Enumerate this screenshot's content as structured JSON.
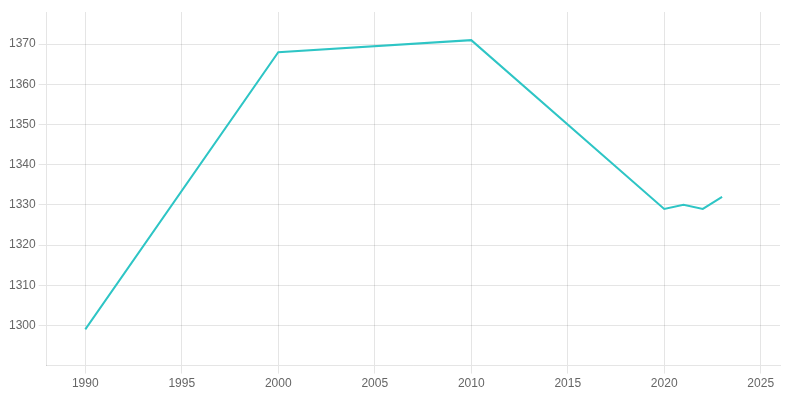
{
  "chart_data": {
    "type": "line",
    "x": [
      1990,
      2000,
      2010,
      2020,
      2021,
      2022,
      2023
    ],
    "values": [
      1299,
      1368,
      1371,
      1329,
      1330,
      1329,
      1332
    ],
    "color": "#2ec5c5",
    "xlim": [
      1988,
      2026
    ],
    "ylim": [
      1290,
      1378
    ],
    "xticks": [
      1990,
      1995,
      2000,
      2005,
      2010,
      2015,
      2020,
      2025
    ],
    "yticks": [
      1300,
      1310,
      1320,
      1330,
      1340,
      1350,
      1360,
      1370
    ],
    "grid": true
  }
}
